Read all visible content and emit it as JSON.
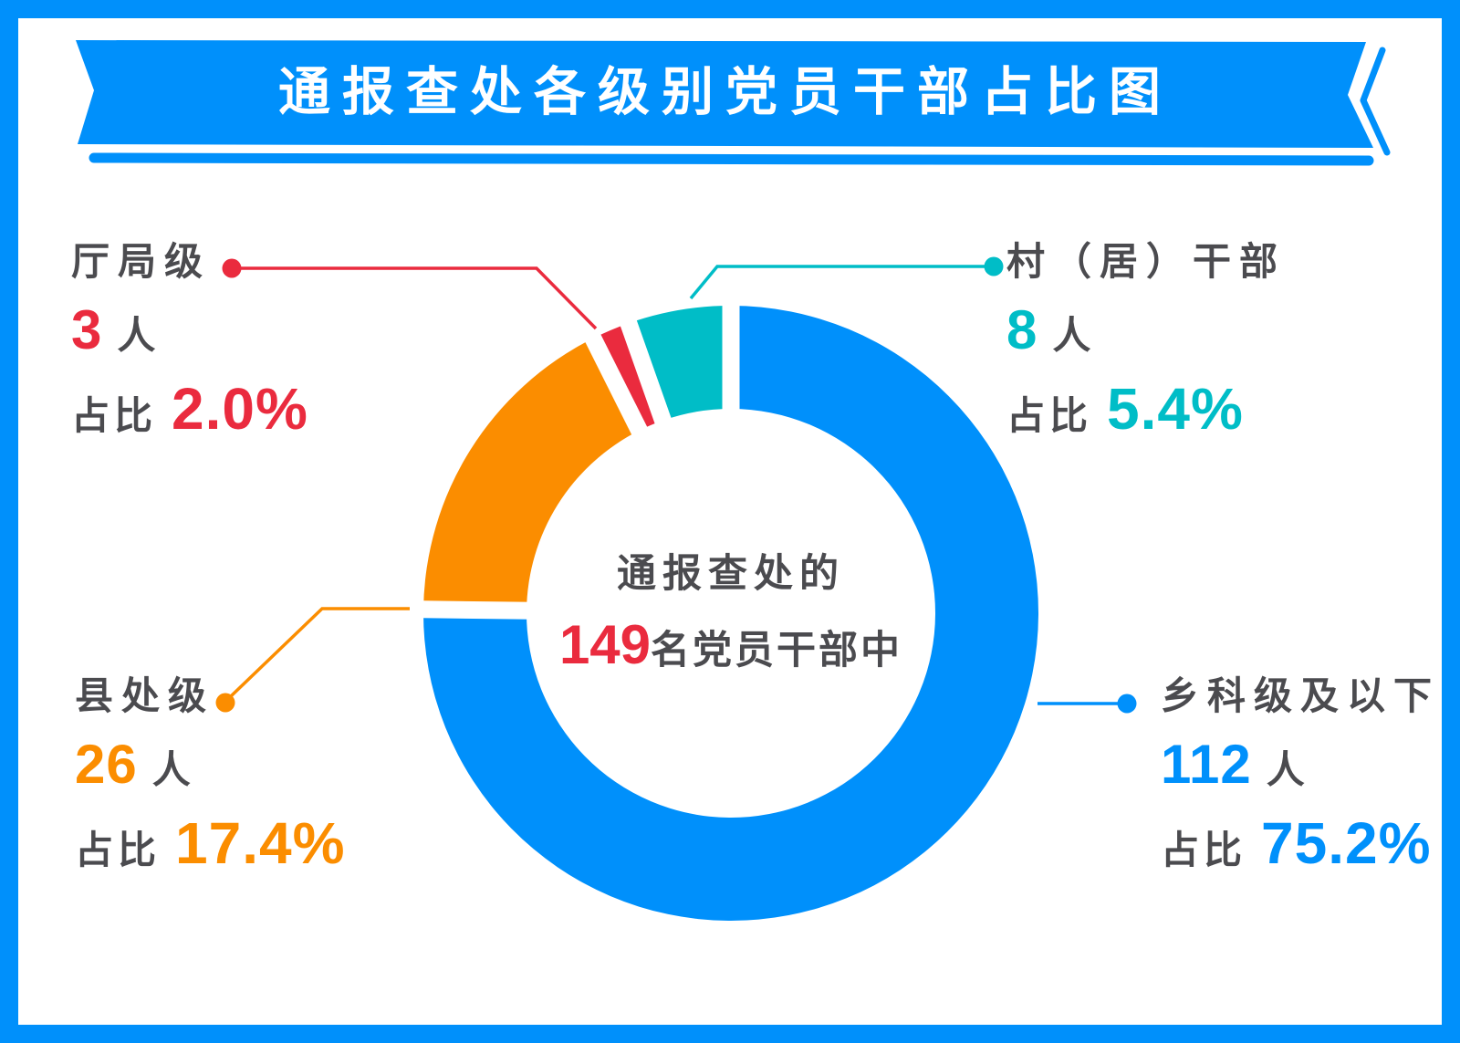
{
  "title": "通报查处各级别党员干部占比图",
  "strings": {
    "share_label": "占比",
    "unit_people": "人"
  },
  "center": {
    "line1": "通报查处的",
    "count": "149",
    "line2_suffix": "名党员干部中"
  },
  "labels": {
    "tl": {
      "name": "厅局级",
      "count": "3",
      "percent": "2.0%"
    },
    "tr": {
      "name": "村（居）干部",
      "count": "8",
      "percent": "5.4%"
    },
    "bl": {
      "name": "县处级",
      "count": "26",
      "percent": "17.4%"
    },
    "br": {
      "name": "乡科级及以下",
      "count": "112",
      "percent": "75.2%"
    }
  },
  "colors": {
    "frame_blue": "#0090fb",
    "banner_blue": "#0090fb",
    "text_gray": "#4b4b4f",
    "red": "#ea2b3e",
    "teal": "#00bdc7",
    "orange": "#fb8d00",
    "blue": "#0090fb",
    "background": "#ffffff"
  },
  "chart_data": {
    "type": "pie",
    "donut": true,
    "title": "通报查处各级别党员干部占比图",
    "center_label": "通报查处的149名党员干部中",
    "total": 149,
    "start_angle_deg": 0,
    "direction": "clockwise",
    "legend_position": "callout-labels",
    "segments": [
      {
        "label": "乡科级及以下",
        "count": 112,
        "percent": 75.2,
        "color": "#0090fb"
      },
      {
        "label": "县处级",
        "count": 26,
        "percent": 17.4,
        "color": "#fb8d00"
      },
      {
        "label": "厅局级",
        "count": 3,
        "percent": 2.0,
        "color": "#ea2b3e"
      },
      {
        "label": "村（居）干部",
        "count": 8,
        "percent": 5.4,
        "color": "#00bdc7"
      }
    ]
  }
}
